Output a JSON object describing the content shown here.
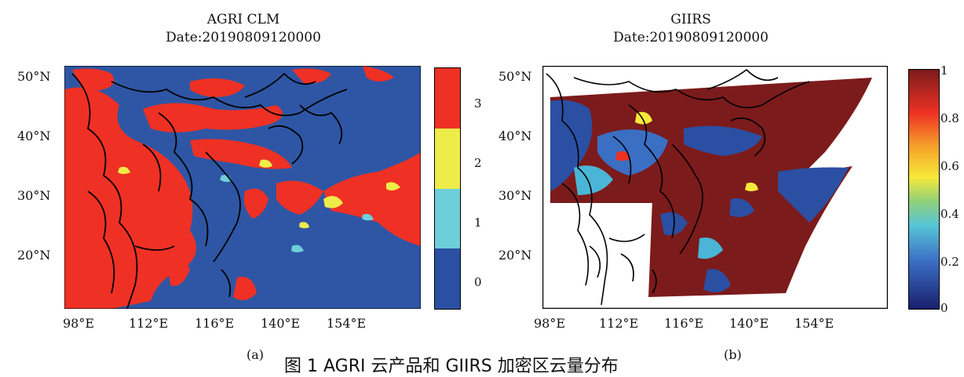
{
  "caption": "图 1 AGRI 云产品和 GIIRS 加密区云量分布",
  "panels": [
    {
      "label": "(a)",
      "title": "AGRI CLM",
      "date": "Date:20190809120000",
      "lat_labels": [
        "50°N",
        "40°N",
        "30°N",
        "20°N"
      ],
      "lon_labels": [
        "98°E",
        "112°E",
        "116°E",
        "140°E",
        "154°E"
      ],
      "colorbar": {
        "type": "categorical",
        "ticks": [
          "3",
          "2",
          "1",
          "0"
        ],
        "colors": [
          "#ee3124",
          "#eeec48",
          "#6ecfd9",
          "#2b4fa2"
        ]
      }
    },
    {
      "label": "(b)",
      "title": "GIIRS",
      "date": "Date:20190809120000",
      "lat_labels": [
        "50°N",
        "40°N",
        "30°N",
        "20°N"
      ],
      "lon_labels": [
        "98°E",
        "112°E",
        "116°E",
        "140°E",
        "154°E"
      ],
      "colorbar": {
        "type": "continuous",
        "ticks": [
          "1",
          "0.8",
          "0.6",
          "0.4",
          "0.2",
          "0"
        ],
        "colors": [
          "#7c1b1b",
          "#ee3124",
          "#f7e93a",
          "#58c6d6",
          "#2b4fa2",
          "#1b1f6e"
        ]
      }
    }
  ]
}
